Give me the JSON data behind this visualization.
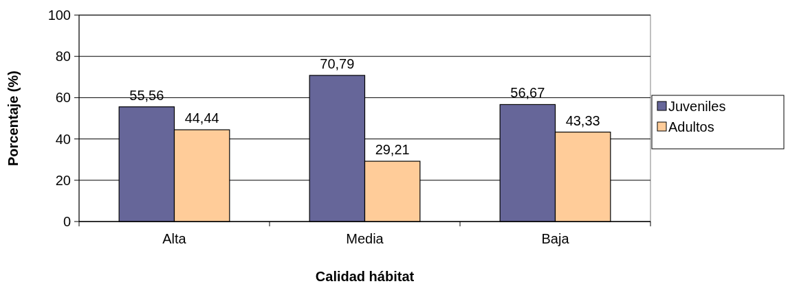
{
  "chart_data": {
    "type": "bar",
    "xlabel": "Calidad hábitat",
    "ylabel": "Porcentaje (%)",
    "categories": [
      "Alta",
      "Media",
      "Baja"
    ],
    "series": [
      {
        "name": "Juveniles",
        "color": "#666699",
        "values": [
          55.56,
          70.79,
          56.67
        ],
        "value_labels": [
          "55,56",
          "70,79",
          "56,67"
        ]
      },
      {
        "name": "Adultos",
        "color": "#ffcc99",
        "values": [
          44.44,
          29.21,
          43.33
        ],
        "value_labels": [
          "44,44",
          "29,21",
          "43,33"
        ]
      }
    ],
    "ylim": [
      0,
      100
    ],
    "yticks": [
      0,
      20,
      40,
      60,
      80,
      100
    ],
    "grid": "y",
    "legend": "right"
  }
}
